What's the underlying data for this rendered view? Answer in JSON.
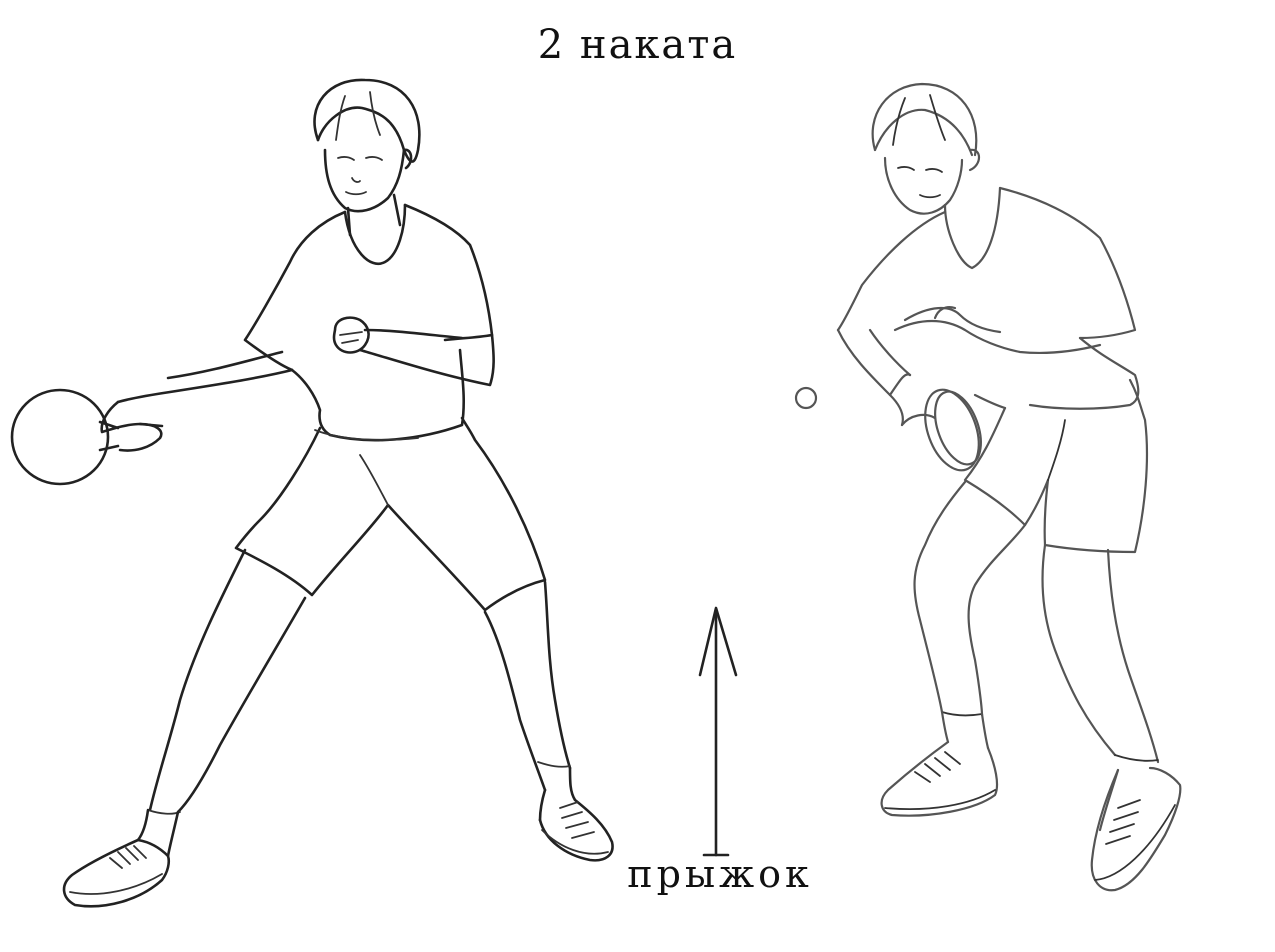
{
  "title": "2 наката",
  "caption": "прыжок",
  "figures": [
    {
      "name": "player-left",
      "equipment": "paddle"
    },
    {
      "name": "player-right",
      "equipment": "paddle",
      "ball": true
    }
  ],
  "colors": {
    "ink": "#222222",
    "background": "#ffffff"
  }
}
